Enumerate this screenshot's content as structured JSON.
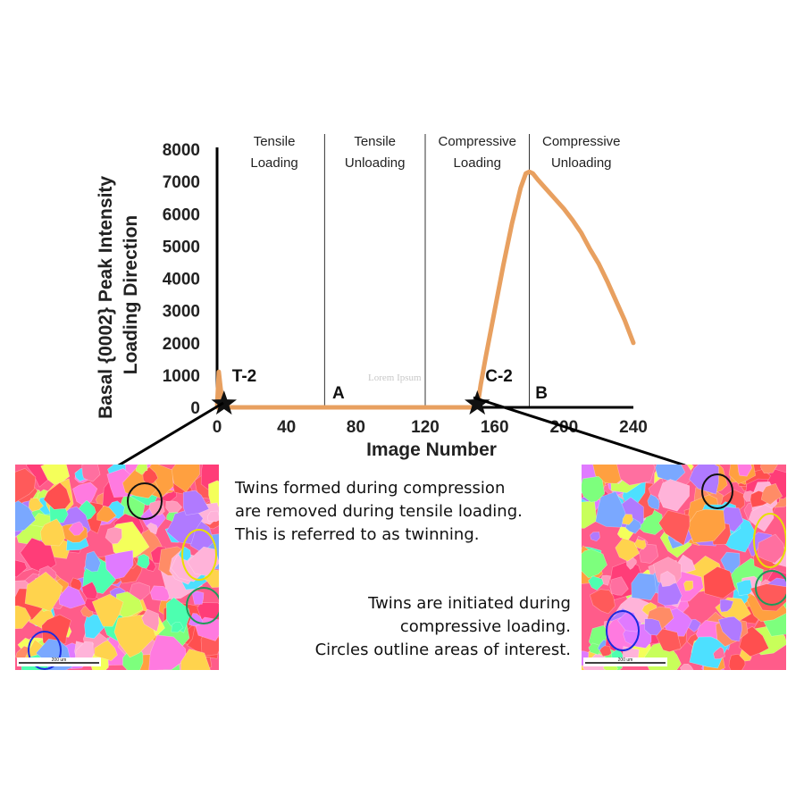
{
  "chart_data": {
    "type": "line",
    "xlabel": "Image Number",
    "ylabel_lines": [
      "Basal {0002} Peak Intensity",
      "Loading Direction"
    ],
    "x_ticks": [
      0,
      40,
      80,
      120,
      160,
      200,
      240
    ],
    "y_ticks": [
      0,
      1000,
      2000,
      3000,
      4000,
      5000,
      6000,
      7000,
      8000
    ],
    "xlim": [
      0,
      240
    ],
    "ylim": [
      0,
      8000
    ],
    "grid": false,
    "series": [
      {
        "color": "#e8a060",
        "x": [
          0,
          1,
          2,
          3,
          4,
          5,
          10,
          20,
          40,
          60,
          80,
          100,
          120,
          140,
          150,
          152,
          155,
          160,
          165,
          170,
          175,
          178,
          180,
          182,
          185,
          190,
          195,
          200,
          205,
          210,
          215,
          220,
          225,
          230,
          235,
          240
        ],
        "y": [
          0,
          1100,
          600,
          200,
          50,
          0,
          0,
          0,
          0,
          0,
          0,
          0,
          0,
          0,
          0,
          700,
          1600,
          3000,
          4400,
          5700,
          6800,
          7250,
          7300,
          7250,
          7050,
          6750,
          6450,
          6150,
          5800,
          5400,
          4900,
          4450,
          3900,
          3300,
          2700,
          2000
        ]
      }
    ],
    "phase_boundaries": [
      62,
      120,
      180
    ],
    "phases": [
      {
        "x_center": 33,
        "lines": [
          "Tensile",
          "Loading"
        ]
      },
      {
        "x_center": 91,
        "lines": [
          "Tensile",
          "Unloading"
        ]
      },
      {
        "x_center": 150,
        "lines": [
          "Compressive",
          "Loading"
        ]
      },
      {
        "x_center": 210,
        "lines": [
          "Compressive",
          "Unloading"
        ]
      }
    ],
    "markers": [
      {
        "label": "T-2",
        "x": 4,
        "y": 0
      },
      {
        "label": "C-2",
        "x": 150,
        "y": 0
      }
    ],
    "point_labels": [
      {
        "label": "A",
        "x": 70,
        "y": 0
      },
      {
        "label": "B",
        "x": 187,
        "y": 0
      }
    ]
  },
  "watermark": "Lorem Ipsum",
  "captions": {
    "left": [
      "Twins formed during compression",
      "are removed during tensile loading.",
      "This is referred to as twinning."
    ],
    "right": [
      "Twins are initiated during",
      "compressive loading.",
      "Circles outline areas of interest."
    ]
  },
  "micrographs": {
    "left": {
      "scale_text": "200 um"
    },
    "right": {
      "scale_text": "200 um"
    }
  },
  "colors": {
    "series": "#e8a060",
    "circle_black": "#111111",
    "circle_yellow": "#e8e000",
    "circle_green": "#1e9a5a",
    "circle_blue": "#1a2be0"
  }
}
